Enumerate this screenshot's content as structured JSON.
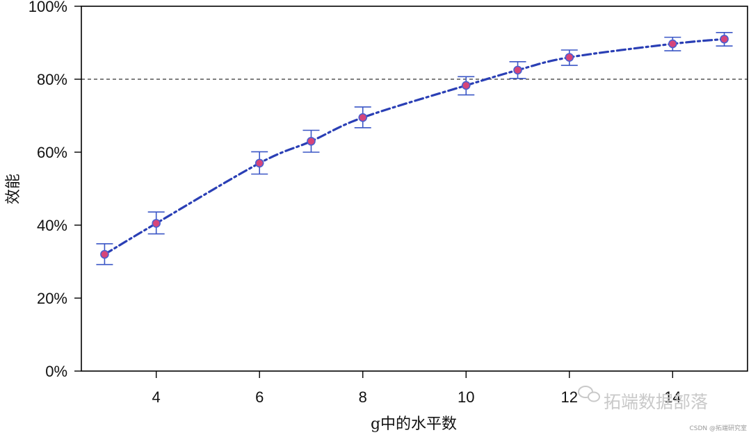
{
  "chart_data": {
    "type": "line",
    "title": "",
    "xlabel": "g中的水平数",
    "ylabel": "效能",
    "xlim": [
      2.55,
      15.45
    ],
    "ylim": [
      0,
      1
    ],
    "x_ticks": [
      4,
      6,
      8,
      10,
      12,
      14
    ],
    "x_tick_labels": [
      "4",
      "6",
      "8",
      "10",
      "12",
      "14"
    ],
    "y_ticks": [
      0,
      0.2,
      0.4,
      0.6,
      0.8,
      1.0
    ],
    "y_tick_labels": [
      "0%",
      "20%",
      "40%",
      "60%",
      "80%",
      "100%"
    ],
    "reference_line": {
      "y": 0.8,
      "style": "dashed"
    },
    "grid": false,
    "series": [
      {
        "x": [
          3,
          4,
          6,
          7,
          8,
          10,
          11,
          12,
          14,
          15
        ],
        "y": [
          0.32,
          0.405,
          0.57,
          0.63,
          0.695,
          0.783,
          0.825,
          0.86,
          0.897,
          0.91
        ],
        "lower": [
          0.292,
          0.376,
          0.54,
          0.6,
          0.667,
          0.757,
          0.802,
          0.838,
          0.878,
          0.891
        ],
        "upper": [
          0.349,
          0.436,
          0.601,
          0.66,
          0.724,
          0.807,
          0.848,
          0.88,
          0.915,
          0.928
        ]
      }
    ],
    "colors": {
      "line": "#2a3fb5",
      "point_fill": "#d6457a",
      "point_stroke": "#4a5ed0",
      "errorbar": "#3a56c6"
    }
  },
  "watermark": {
    "main": "拓端数据部落",
    "small": "CSDN @拓端研究室",
    "icon": "wechat-icon"
  }
}
